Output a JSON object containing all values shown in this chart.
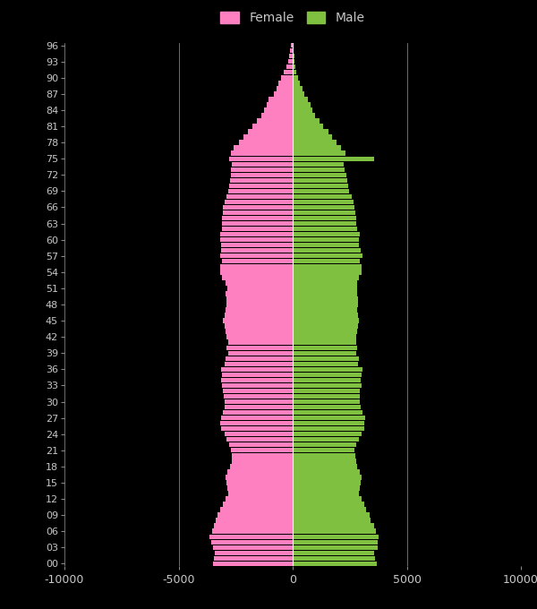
{
  "background_color": "#000000",
  "text_color": "#c8c8c8",
  "female_color": "#ff80c0",
  "male_color": "#80c040",
  "xlim": [
    -10000,
    10000
  ],
  "xticks": [
    -10000,
    -5000,
    0,
    5000,
    10000
  ],
  "bar_height": 0.9,
  "ages": [
    0,
    1,
    2,
    3,
    4,
    5,
    6,
    7,
    8,
    9,
    10,
    11,
    12,
    13,
    14,
    15,
    16,
    17,
    18,
    19,
    20,
    21,
    22,
    23,
    24,
    25,
    26,
    27,
    28,
    29,
    30,
    31,
    32,
    33,
    34,
    35,
    36,
    37,
    38,
    39,
    40,
    41,
    42,
    43,
    44,
    45,
    46,
    47,
    48,
    49,
    50,
    51,
    52,
    53,
    54,
    55,
    56,
    57,
    58,
    59,
    60,
    61,
    62,
    63,
    64,
    65,
    66,
    67,
    68,
    69,
    70,
    71,
    72,
    73,
    74,
    75,
    76,
    77,
    78,
    79,
    80,
    81,
    82,
    83,
    84,
    85,
    86,
    87,
    88,
    89,
    90,
    91,
    92,
    93,
    94,
    95,
    96
  ],
  "female": [
    3500,
    3450,
    3400,
    3500,
    3580,
    3640,
    3540,
    3450,
    3380,
    3280,
    3180,
    3040,
    2940,
    2840,
    2880,
    2920,
    2960,
    2880,
    2740,
    2680,
    2660,
    2700,
    2800,
    2900,
    3000,
    3120,
    3160,
    3120,
    3040,
    2970,
    2970,
    3010,
    3060,
    3100,
    3140,
    3100,
    3140,
    3000,
    2950,
    2840,
    2890,
    2840,
    2890,
    2940,
    2990,
    3040,
    2990,
    2940,
    2890,
    2890,
    2940,
    2880,
    2940,
    3080,
    3180,
    3180,
    3080,
    3180,
    3140,
    3140,
    3180,
    3160,
    3080,
    3080,
    3080,
    3040,
    3040,
    2970,
    2920,
    2820,
    2780,
    2750,
    2720,
    2700,
    2660,
    2780,
    2710,
    2570,
    2360,
    2160,
    1960,
    1760,
    1560,
    1360,
    1240,
    1140,
    1040,
    840,
    720,
    620,
    500,
    380,
    280,
    200,
    160,
    110,
    70
  ],
  "male": [
    3680,
    3620,
    3560,
    3720,
    3730,
    3780,
    3640,
    3580,
    3430,
    3380,
    3230,
    3120,
    3020,
    2920,
    2930,
    2980,
    3020,
    2930,
    2820,
    2770,
    2750,
    2690,
    2800,
    2900,
    3010,
    3120,
    3120,
    3170,
    3070,
    2970,
    2930,
    2960,
    2960,
    3010,
    2970,
    3010,
    3060,
    2870,
    2920,
    2770,
    2820,
    2770,
    2770,
    2820,
    2870,
    2920,
    2870,
    2820,
    2870,
    2870,
    2820,
    2810,
    2810,
    2920,
    3010,
    3010,
    2960,
    3050,
    2990,
    2900,
    2890,
    2930,
    2840,
    2800,
    2780,
    2740,
    2720,
    2680,
    2590,
    2490,
    2430,
    2380,
    2350,
    2280,
    2220,
    3550,
    2330,
    2130,
    1940,
    1740,
    1550,
    1350,
    1180,
    980,
    870,
    770,
    660,
    520,
    430,
    330,
    240,
    175,
    125,
    90,
    65,
    45,
    25
  ],
  "legend_female": "Female",
  "legend_male": "Male"
}
